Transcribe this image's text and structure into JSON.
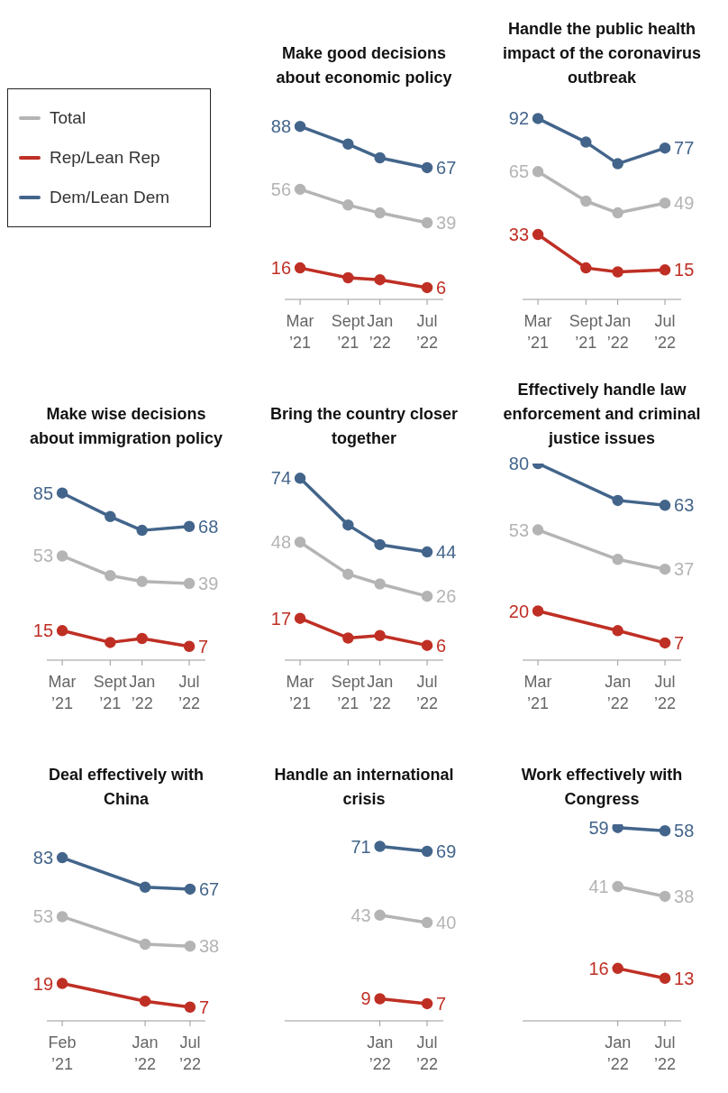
{
  "chart_data": [
    {
      "type": "line",
      "title": "Make good decisions about economic policy",
      "legend": "left",
      "marker": "circle",
      "line_style": "solid",
      "tick_labels": "x",
      "xlim": [
        "2021-01",
        "2022-09"
      ],
      "x": [
        "2021-03",
        "2021-09",
        "2022-01",
        "2022-07"
      ],
      "xticks": [
        {
          "value": "2021-03",
          "label": "Mar\n’21"
        },
        {
          "value": "2021-09",
          "label": "Sept\n’21"
        },
        {
          "value": "2022-01",
          "label": "Jan\n’22"
        },
        {
          "value": "2022-07",
          "label": "Jul\n’22"
        }
      ],
      "series": [
        {
          "name": "Total",
          "color": "#b4b4b4",
          "values": [
            56,
            48,
            44,
            39
          ],
          "value_labels": [
            "56",
            null,
            null,
            "39"
          ]
        },
        {
          "name": "Rep/Lean Rep",
          "color": "#bf2f24",
          "values": [
            16,
            11,
            10,
            6
          ],
          "value_labels": [
            "16",
            null,
            null,
            "6"
          ]
        },
        {
          "name": "Dem/Lean Dem",
          "color": "#43658b",
          "values": [
            88,
            79,
            72,
            67
          ],
          "value_labels": [
            "88",
            null,
            null,
            "67"
          ]
        }
      ]
    },
    {
      "type": "line",
      "title": "Handle the public health impact of the coronavirus outbreak",
      "marker": "circle",
      "line_style": "solid",
      "tick_labels": "x",
      "xlim": [
        "2021-01",
        "2022-09"
      ],
      "x": [
        "2021-03",
        "2021-09",
        "2022-01",
        "2022-07"
      ],
      "xticks": [
        {
          "value": "2021-03",
          "label": "Mar\n’21"
        },
        {
          "value": "2021-09",
          "label": "Sept\n’21"
        },
        {
          "value": "2022-01",
          "label": "Jan\n’22"
        },
        {
          "value": "2022-07",
          "label": "Jul\n’22"
        }
      ],
      "series": [
        {
          "color": "#b4b4b4",
          "values": [
            65,
            50,
            44,
            49
          ],
          "value_labels": [
            "65",
            null,
            null,
            "49"
          ]
        },
        {
          "color": "#bf2f24",
          "values": [
            33,
            16,
            14,
            15
          ],
          "value_labels": [
            "33",
            null,
            null,
            "15"
          ]
        },
        {
          "color": "#43658b",
          "values": [
            92,
            80,
            69,
            77
          ],
          "value_labels": [
            "92",
            null,
            null,
            "77"
          ]
        }
      ]
    },
    {
      "type": "line",
      "title": "Make wise decisions about immigration policy",
      "marker": "circle",
      "line_style": "solid",
      "tick_labels": "x",
      "xlim": [
        "2021-01",
        "2022-09"
      ],
      "x": [
        "2021-03",
        "2021-09",
        "2022-01",
        "2022-07"
      ],
      "xticks": [
        {
          "value": "2021-03",
          "label": "Mar\n’21"
        },
        {
          "value": "2021-09",
          "label": "Sept\n’21"
        },
        {
          "value": "2022-01",
          "label": "Jan\n’22"
        },
        {
          "value": "2022-07",
          "label": "Jul\n’22"
        }
      ],
      "series": [
        {
          "color": "#b4b4b4",
          "values": [
            53,
            43,
            40,
            39
          ],
          "value_labels": [
            "53",
            null,
            null,
            "39"
          ]
        },
        {
          "color": "#bf2f24",
          "values": [
            15,
            9,
            11,
            7
          ],
          "value_labels": [
            "15",
            null,
            null,
            "7"
          ]
        },
        {
          "color": "#43658b",
          "values": [
            85,
            73,
            66,
            68
          ],
          "value_labels": [
            "85",
            null,
            null,
            "68"
          ]
        }
      ]
    },
    {
      "type": "line",
      "title": "Bring the country closer together",
      "marker": "circle",
      "line_style": "solid",
      "tick_labels": "x",
      "xlim": [
        "2021-01",
        "2022-09"
      ],
      "x": [
        "2021-03",
        "2021-09",
        "2022-01",
        "2022-07"
      ],
      "xticks": [
        {
          "value": "2021-03",
          "label": "Mar\n’21"
        },
        {
          "value": "2021-09",
          "label": "Sept\n’21"
        },
        {
          "value": "2022-01",
          "label": "Jan\n’22"
        },
        {
          "value": "2022-07",
          "label": "Jul\n’22"
        }
      ],
      "series": [
        {
          "color": "#b4b4b4",
          "values": [
            48,
            35,
            31,
            26
          ],
          "value_labels": [
            "48",
            null,
            null,
            "26"
          ]
        },
        {
          "color": "#bf2f24",
          "values": [
            17,
            9,
            10,
            6
          ],
          "value_labels": [
            "17",
            null,
            null,
            "6"
          ]
        },
        {
          "color": "#43658b",
          "values": [
            74,
            55,
            47,
            44
          ],
          "value_labels": [
            "74",
            null,
            null,
            "44"
          ]
        }
      ]
    },
    {
      "type": "line",
      "title": "Effectively handle law enforcement and criminal justice issues",
      "marker": "circle",
      "line_style": "solid",
      "tick_labels": "x",
      "xlim": [
        "2021-01",
        "2022-09"
      ],
      "x": [
        "2021-03",
        "2022-01",
        "2022-07"
      ],
      "xticks": [
        {
          "value": "2021-03",
          "label": "Mar\n’21"
        },
        {
          "value": "2022-01",
          "label": "Jan\n’22"
        },
        {
          "value": "2022-07",
          "label": "Jul\n’22"
        }
      ],
      "series": [
        {
          "color": "#b4b4b4",
          "values": [
            53,
            41,
            37
          ],
          "value_labels": [
            "53",
            null,
            "37"
          ]
        },
        {
          "color": "#bf2f24",
          "values": [
            20,
            12,
            7
          ],
          "value_labels": [
            "20",
            null,
            "7"
          ]
        },
        {
          "color": "#43658b",
          "values": [
            80,
            65,
            63
          ],
          "value_labels": [
            "80",
            null,
            "63"
          ]
        }
      ]
    },
    {
      "type": "line",
      "title": "Deal effectively with China",
      "marker": "circle",
      "line_style": "solid",
      "tick_labels": "x",
      "xlim": [
        "2020-12",
        "2022-09"
      ],
      "x": [
        "2021-02",
        "2022-01",
        "2022-07"
      ],
      "xticks": [
        {
          "value": "2021-02",
          "label": "Feb\n’21"
        },
        {
          "value": "2022-01",
          "label": "Jan\n’22"
        },
        {
          "value": "2022-07",
          "label": "Jul\n’22"
        }
      ],
      "series": [
        {
          "color": "#b4b4b4",
          "values": [
            53,
            39,
            38
          ],
          "value_labels": [
            "53",
            null,
            "38"
          ]
        },
        {
          "color": "#bf2f24",
          "values": [
            19,
            10,
            7
          ],
          "value_labels": [
            "19",
            null,
            "7"
          ]
        },
        {
          "color": "#43658b",
          "values": [
            83,
            68,
            67
          ],
          "value_labels": [
            "83",
            null,
            "67"
          ]
        }
      ]
    },
    {
      "type": "line",
      "title": "Handle an international crisis",
      "marker": "circle",
      "line_style": "solid",
      "tick_labels": "x",
      "xlim": [
        "2021-01",
        "2022-09"
      ],
      "x": [
        "2022-01",
        "2022-07"
      ],
      "xticks": [
        {
          "value": "2022-01",
          "label": "Jan\n’22"
        },
        {
          "value": "2022-07",
          "label": "Jul\n’22"
        }
      ],
      "series": [
        {
          "color": "#b4b4b4",
          "values": [
            43,
            40
          ],
          "value_labels": [
            "43",
            "40"
          ]
        },
        {
          "color": "#bf2f24",
          "values": [
            9,
            7
          ],
          "value_labels": [
            "9",
            "7"
          ]
        },
        {
          "color": "#43658b",
          "values": [
            71,
            69
          ],
          "value_labels": [
            "71",
            "69"
          ]
        }
      ]
    },
    {
      "type": "line",
      "title": "Work effectively with Congress",
      "marker": "circle",
      "line_style": "solid",
      "tick_labels": "x",
      "xlim": [
        "2021-01",
        "2022-09"
      ],
      "x": [
        "2022-01",
        "2022-07"
      ],
      "xticks": [
        {
          "value": "2022-01",
          "label": "Jan\n’22"
        },
        {
          "value": "2022-07",
          "label": "Jul\n’22"
        }
      ],
      "series": [
        {
          "color": "#b4b4b4",
          "values": [
            41,
            38
          ],
          "value_labels": [
            "41",
            "38"
          ]
        },
        {
          "color": "#bf2f24",
          "values": [
            16,
            13
          ],
          "value_labels": [
            "16",
            "13"
          ]
        },
        {
          "color": "#43658b",
          "values": [
            59,
            58
          ],
          "value_labels": [
            "59",
            "58"
          ]
        }
      ]
    }
  ]
}
